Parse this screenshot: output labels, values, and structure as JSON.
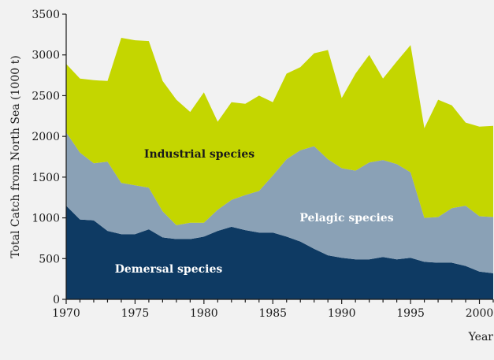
{
  "chart_data": {
    "type": "area",
    "stacked": true,
    "xlabel": "Year",
    "ylabel": "Total Catch from North Sea (1000 t)",
    "xlim": [
      1970,
      2001
    ],
    "ylim": [
      0,
      3500
    ],
    "xticks": [
      "1970",
      "1975",
      "1980",
      "1985",
      "1990",
      "1995",
      "2000"
    ],
    "yticks": [
      "0",
      "500",
      "1000",
      "1500",
      "2000",
      "2500",
      "3000",
      "3500"
    ],
    "grid": false,
    "legend": "none",
    "x": [
      1970,
      1971,
      1972,
      1973,
      1974,
      1975,
      1976,
      1977,
      1978,
      1979,
      1980,
      1981,
      1982,
      1983,
      1984,
      1985,
      1986,
      1987,
      1988,
      1989,
      1990,
      1991,
      1992,
      1993,
      1994,
      1995,
      1996,
      1997,
      1998,
      1999,
      2000,
      2001
    ],
    "series": [
      {
        "name": "Demersal species",
        "color": "#0e3a63",
        "label_color": "#ffffff",
        "values": [
          1150,
          980,
          970,
          840,
          800,
          800,
          860,
          760,
          740,
          740,
          770,
          840,
          890,
          850,
          820,
          820,
          770,
          710,
          620,
          540,
          510,
          490,
          490,
          520,
          490,
          510,
          460,
          450,
          450,
          410,
          340,
          320
        ]
      },
      {
        "name": "Pelagic species",
        "color": "#8aa1b6",
        "label_color": "#ffffff",
        "values": [
          900,
          820,
          700,
          850,
          630,
          600,
          510,
          320,
          170,
          200,
          170,
          260,
          330,
          430,
          510,
          700,
          950,
          1120,
          1260,
          1180,
          1100,
          1090,
          1190,
          1190,
          1170,
          1050,
          540,
          560,
          670,
          740,
          680,
          690
        ]
      },
      {
        "name": "Industrial species",
        "color": "#c4d600",
        "label_color": "#1a1a1a",
        "values": [
          840,
          910,
          1020,
          990,
          1780,
          1780,
          1800,
          1600,
          1540,
          1360,
          1600,
          1080,
          1200,
          1120,
          1170,
          900,
          1050,
          1020,
          1140,
          1340,
          860,
          1190,
          1320,
          1000,
          1260,
          1560,
          1100,
          1440,
          1260,
          1020,
          1100,
          1120
        ]
      }
    ]
  }
}
